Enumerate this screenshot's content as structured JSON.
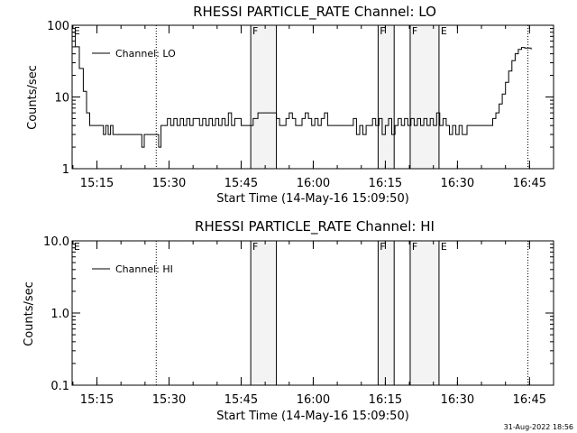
{
  "chart_data": [
    {
      "type": "line",
      "title": "RHESSI PARTICLE_RATE Channel: LO",
      "xlabel": "Start Time (14-May-16 15:09:50)",
      "ylabel": "Counts/sec",
      "yscale": "log",
      "ylim": [
        1,
        100
      ],
      "yticks": [
        1,
        10,
        100
      ],
      "ytick_labels": [
        "1",
        "10",
        "100"
      ],
      "xlim": [
        "15:09:50",
        "16:50:00"
      ],
      "xtick_labels": [
        "15:15",
        "15:30",
        "15:45",
        "16:00",
        "16:15",
        "16:30",
        "16:45"
      ],
      "legend": "top-left",
      "series": [
        {
          "name": "Channel: LO",
          "x": [
            "15:09:50",
            "15:10:30",
            "15:11:20",
            "15:12:10",
            "15:12:50",
            "15:13:30",
            "15:14:30",
            "15:15:30",
            "15:16:20",
            "15:16:50",
            "15:17:20",
            "15:17:50",
            "15:18:20",
            "15:18:50",
            "15:19:30",
            "15:20:30",
            "15:21:30",
            "15:22:30",
            "15:23:30",
            "15:24:20",
            "15:24:50",
            "15:25:30",
            "15:26:30",
            "15:27:20",
            "15:27:50",
            "15:28:20",
            "15:29:00",
            "15:29:40",
            "15:30:20",
            "15:31:00",
            "15:31:40",
            "15:32:20",
            "15:33:00",
            "15:33:40",
            "15:34:20",
            "15:35:00",
            "15:35:40",
            "15:36:20",
            "15:37:00",
            "15:37:40",
            "15:38:20",
            "15:39:00",
            "15:39:40",
            "15:40:20",
            "15:41:00",
            "15:41:40",
            "15:42:20",
            "15:43:00",
            "15:43:40",
            "15:44:20",
            "15:45:00",
            "15:45:40",
            "15:46:30",
            "15:47:30",
            "15:48:30",
            "15:49:30",
            "15:50:30",
            "15:51:30",
            "15:52:20",
            "15:53:00",
            "15:53:40",
            "15:54:20",
            "15:55:00",
            "15:55:40",
            "15:56:20",
            "15:57:00",
            "15:57:40",
            "15:58:20",
            "15:59:00",
            "15:59:40",
            "16:00:20",
            "16:01:00",
            "16:01:40",
            "16:02:20",
            "16:03:00",
            "16:04:00",
            "16:05:00",
            "16:06:00",
            "16:07:00",
            "16:07:40",
            "16:08:20",
            "16:09:00",
            "16:09:40",
            "16:10:20",
            "16:11:00",
            "16:11:40",
            "16:12:20",
            "16:13:00",
            "16:13:40",
            "16:14:20",
            "16:15:00",
            "16:15:40",
            "16:16:20",
            "16:17:00",
            "16:17:40",
            "16:18:20",
            "16:19:00",
            "16:19:40",
            "16:20:20",
            "16:21:00",
            "16:21:40",
            "16:22:20",
            "16:23:00",
            "16:23:40",
            "16:24:20",
            "16:25:00",
            "16:25:40",
            "16:26:20",
            "16:27:00",
            "16:27:40",
            "16:28:20",
            "16:29:00",
            "16:29:40",
            "16:30:20",
            "16:31:00",
            "16:32:00",
            "16:33:00",
            "16:34:00",
            "16:35:00",
            "16:36:00",
            "16:36:40",
            "16:37:20",
            "16:38:00",
            "16:38:40",
            "16:39:20",
            "16:40:00",
            "16:40:40",
            "16:41:20",
            "16:42:00",
            "16:42:40",
            "16:43:20",
            "16:44:00",
            "16:44:40",
            "16:45:20"
          ],
          "y": [
            80,
            50,
            25,
            12,
            6,
            4,
            4,
            4,
            3,
            4,
            3,
            4,
            3,
            3,
            3,
            3,
            3,
            3,
            3,
            2,
            3,
            3,
            3,
            3,
            2,
            4,
            4,
            5,
            4,
            5,
            4,
            5,
            4,
            5,
            4,
            5,
            5,
            4,
            5,
            4,
            5,
            4,
            5,
            4,
            5,
            4,
            6,
            4,
            5,
            5,
            4,
            4,
            4,
            5,
            6,
            6,
            6,
            6,
            5,
            4,
            4,
            5,
            6,
            5,
            4,
            4,
            5,
            6,
            5,
            4,
            5,
            4,
            5,
            6,
            4,
            4,
            4,
            4,
            4,
            4,
            5,
            3,
            4,
            3,
            4,
            4,
            5,
            4,
            5,
            3,
            4,
            5,
            3,
            4,
            5,
            4,
            5,
            4,
            5,
            4,
            5,
            4,
            5,
            4,
            5,
            4,
            6,
            4,
            5,
            4,
            3,
            4,
            3,
            4,
            3,
            4,
            4,
            4,
            4,
            4,
            4,
            5,
            6,
            8,
            11,
            16,
            23,
            32,
            40,
            46,
            49,
            48,
            48,
            46
          ]
        }
      ],
      "flags": [
        {
          "label": "E",
          "x": "15:10:00"
        },
        {
          "label": "F",
          "x": "15:47:10"
        },
        {
          "label": "F",
          "x": "16:13:40"
        },
        {
          "label": "F",
          "x": "16:20:20"
        },
        {
          "label": "E",
          "x": "16:26:20"
        }
      ],
      "solid_lines": [
        "15:47:00",
        "15:52:20",
        "16:13:30",
        "16:16:50",
        "16:20:10",
        "16:26:10"
      ],
      "dotted_lines": [
        "15:27:20",
        "16:44:40"
      ],
      "shaded_intervals": [
        [
          "15:47:00",
          "15:52:20"
        ],
        [
          "16:13:30",
          "16:16:50"
        ],
        [
          "16:20:10",
          "16:26:10"
        ]
      ]
    },
    {
      "type": "line",
      "title": "RHESSI PARTICLE_RATE Channel: HI",
      "xlabel": "Start Time (14-May-16 15:09:50)",
      "ylabel": "Counts/sec",
      "yscale": "log",
      "ylim": [
        0.1,
        10
      ],
      "yticks": [
        0.1,
        1,
        10
      ],
      "ytick_labels": [
        "0.1",
        "1.0",
        "10.0"
      ],
      "xlim": [
        "15:09:50",
        "16:50:00"
      ],
      "xtick_labels": [
        "15:15",
        "15:30",
        "15:45",
        "16:00",
        "16:15",
        "16:30",
        "16:45"
      ],
      "legend": "top-left",
      "series": [
        {
          "name": "Channel: HI",
          "x": [],
          "y": []
        }
      ],
      "flags": [
        {
          "label": "E",
          "x": "15:10:00"
        },
        {
          "label": "F",
          "x": "15:47:10"
        },
        {
          "label": "F",
          "x": "16:13:40"
        },
        {
          "label": "F",
          "x": "16:20:20"
        },
        {
          "label": "E",
          "x": "16:26:20"
        }
      ],
      "solid_lines": [
        "15:47:00",
        "15:52:20",
        "16:13:30",
        "16:16:50",
        "16:20:10",
        "16:26:10"
      ],
      "dotted_lines": [
        "15:27:20",
        "16:44:40"
      ],
      "shaded_intervals": [
        [
          "15:47:00",
          "15:52:20"
        ],
        [
          "16:13:30",
          "16:16:50"
        ],
        [
          "16:20:10",
          "16:26:10"
        ]
      ]
    }
  ],
  "timestamp": "31-Aug-2022 18:56"
}
